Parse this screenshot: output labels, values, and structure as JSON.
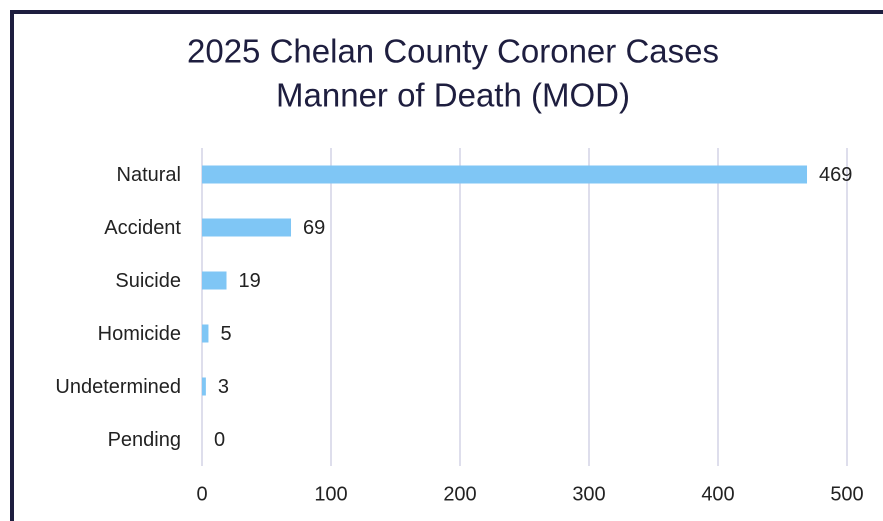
{
  "chart_data": {
    "type": "bar",
    "orientation": "horizontal",
    "title": [
      "2025 Chelan County Coroner Cases",
      "Manner of Death (MOD)"
    ],
    "categories": [
      "Natural",
      "Accident",
      "Suicide",
      "Homicide",
      "Undetermined",
      "Pending"
    ],
    "values": [
      469,
      69,
      19,
      5,
      3,
      0
    ],
    "color": "#7fc6f5",
    "xlim": [
      0,
      500
    ],
    "xticks": [
      0,
      100,
      200,
      300,
      400,
      500
    ],
    "grid": true
  }
}
